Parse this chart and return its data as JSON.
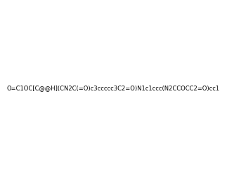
{
  "smiles": "O=C1OC[C@@H](CN2C(=O)c3ccccc3C2=O)N1c1ccc(N2CCOCC2=O)cc1",
  "image_size": 300,
  "background_color": "#f0f0f0"
}
